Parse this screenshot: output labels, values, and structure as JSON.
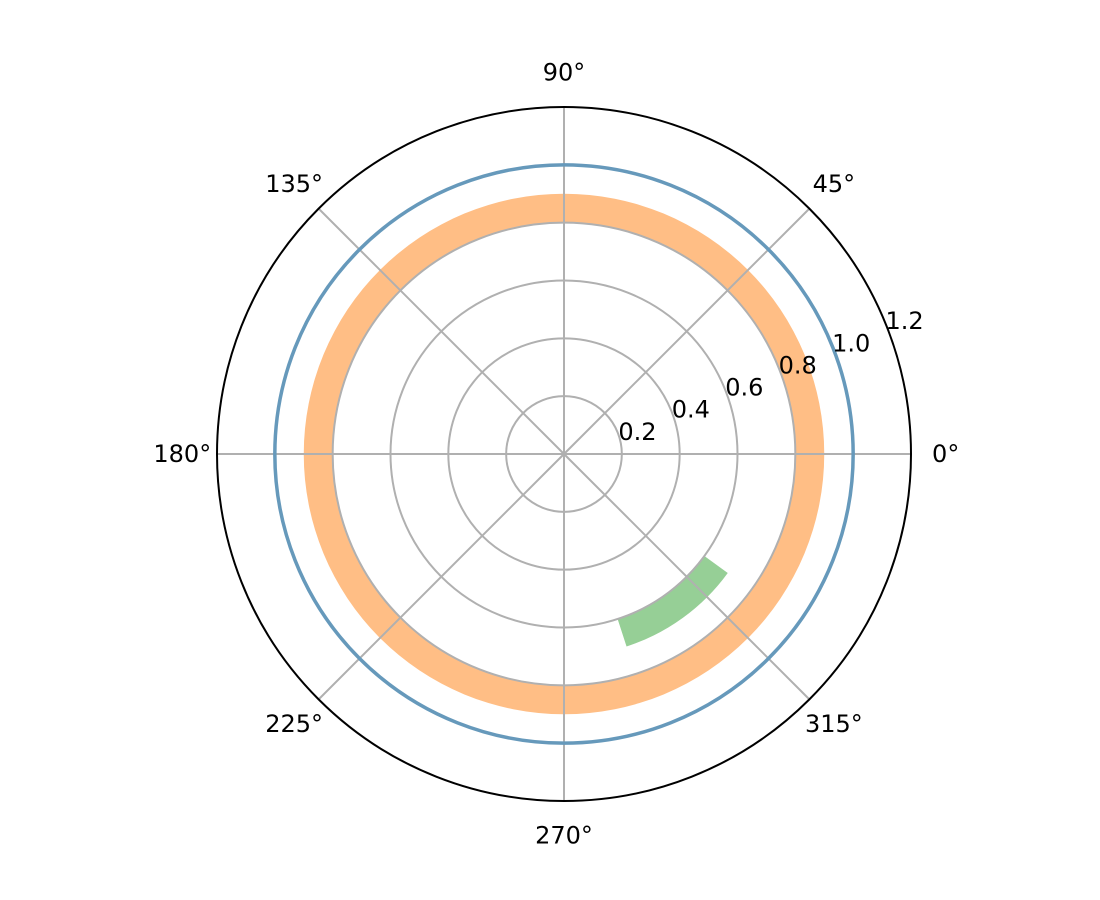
{
  "chart_data": {
    "type": "polar",
    "title": "",
    "rlim": [
      0,
      1.2
    ],
    "r_ticks": [
      0.2,
      0.4,
      0.6,
      0.8,
      1.0,
      1.2
    ],
    "r_tick_labels": [
      "0.2",
      "0.4",
      "0.6",
      "0.8",
      "1.0",
      "1.2"
    ],
    "theta_ticks": [
      0,
      45,
      90,
      135,
      180,
      225,
      270,
      315
    ],
    "theta_tick_labels": [
      "0°",
      "45°",
      "90°",
      "135°",
      "180°",
      "225°",
      "270°",
      "315°"
    ],
    "grid": true,
    "series": [
      {
        "kind": "line",
        "r": 1.0,
        "theta_range_deg": [
          0,
          360
        ],
        "color": "#6699bb"
      },
      {
        "kind": "bar",
        "r_range": [
          0.8,
          0.9
        ],
        "theta_range_deg": [
          0,
          360
        ],
        "color": "#ffbe85"
      },
      {
        "kind": "bar",
        "r_range": [
          0.6,
          0.7
        ],
        "theta_range_deg": [
          288,
          324
        ],
        "color": "#96cf96"
      }
    ]
  }
}
